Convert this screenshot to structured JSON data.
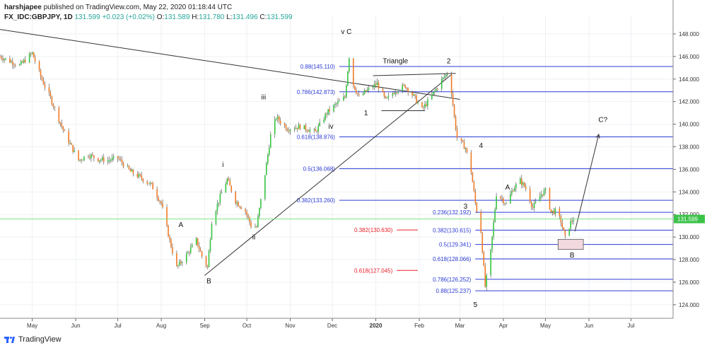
{
  "header": {
    "author": "harshjapee",
    "published": " published on TradingView.com, May 22, 2020 01:18:44 UTC",
    "symbol": "FX_IDC:GBPJPY, 1D",
    "last": "131.599",
    "change": "+0.023 (+0.02%)",
    "o_label": "O:",
    "o": "131.589",
    "h_label": "H:",
    "h": "131.780",
    "l_label": "L:",
    "l": "131.496",
    "c_label": "C:",
    "c": "131.599"
  },
  "footer": {
    "brand": "TradingView"
  },
  "colors": {
    "up": "#34c33f",
    "down": "#f07a25",
    "fib_blue": "#2c3cd6",
    "fib_red": "#e8202a",
    "price_line": "#7ee27e",
    "price_badge": "#3cc34a",
    "trend": "#333333"
  },
  "chart_data": {
    "type": "candlestick",
    "symbol": "GBPJPY",
    "timeframe": "1D",
    "ylim": [
      122.8,
      149.0
    ],
    "y_ticks": [
      124,
      126,
      128,
      130,
      132,
      134,
      136,
      138,
      140,
      142,
      144,
      146,
      148
    ],
    "y_tick_labels": [
      "124.000",
      "126.000",
      "128.000",
      "130.000",
      "132.000",
      "134.000",
      "136.000",
      "138.000",
      "140.000",
      "142.000",
      "144.000",
      "146.000",
      "148.000"
    ],
    "x_range": [
      "2019-04-08",
      "2020-07-31"
    ],
    "x_ticks": [
      {
        "date": "2019-05-01",
        "label": "May"
      },
      {
        "date": "2019-06-01",
        "label": "Jun"
      },
      {
        "date": "2019-07-01",
        "label": "Jul"
      },
      {
        "date": "2019-08-01",
        "label": "Aug"
      },
      {
        "date": "2019-09-01",
        "label": "Sep"
      },
      {
        "date": "2019-10-01",
        "label": "Oct"
      },
      {
        "date": "2019-11-01",
        "label": "Nov"
      },
      {
        "date": "2019-12-01",
        "label": "Dec"
      },
      {
        "date": "2020-01-01",
        "label": "2020"
      },
      {
        "date": "2020-02-01",
        "label": "Feb"
      },
      {
        "date": "2020-03-01",
        "label": "Mar"
      },
      {
        "date": "2020-04-01",
        "label": "Apr"
      },
      {
        "date": "2020-05-01",
        "label": "May"
      },
      {
        "date": "2020-06-01",
        "label": "Jun"
      },
      {
        "date": "2020-07-01",
        "label": "Jul"
      }
    ],
    "last_price": 131.599,
    "last_price_label": "131.599",
    "close_anchors": [
      [
        "2019-04-08",
        146.0
      ],
      [
        "2019-04-22",
        145.2
      ],
      [
        "2019-05-01",
        146.3
      ],
      [
        "2019-05-07",
        144.2
      ],
      [
        "2019-05-14",
        142.3
      ],
      [
        "2019-05-24",
        139.2
      ],
      [
        "2019-06-03",
        136.8
      ],
      [
        "2019-06-10",
        137.3
      ],
      [
        "2019-06-17",
        136.9
      ],
      [
        "2019-06-24",
        136.8
      ],
      [
        "2019-07-01",
        137.0
      ],
      [
        "2019-07-10",
        135.8
      ],
      [
        "2019-07-17",
        135.3
      ],
      [
        "2019-07-25",
        134.6
      ],
      [
        "2019-08-01",
        133.0
      ],
      [
        "2019-08-07",
        129.7
      ],
      [
        "2019-08-12",
        127.3
      ],
      [
        "2019-08-14",
        127.6
      ],
      [
        "2019-08-20",
        128.6
      ],
      [
        "2019-08-26",
        129.7
      ],
      [
        "2019-08-30",
        128.3
      ],
      [
        "2019-09-03",
        127.3
      ],
      [
        "2019-09-06",
        131.4
      ],
      [
        "2019-09-12",
        133.6
      ],
      [
        "2019-09-17",
        135.1
      ],
      [
        "2019-09-23",
        133.2
      ],
      [
        "2019-09-30",
        132.3
      ],
      [
        "2019-10-04",
        131.0
      ],
      [
        "2019-10-08",
        130.9
      ],
      [
        "2019-10-14",
        135.6
      ],
      [
        "2019-10-18",
        139.0
      ],
      [
        "2019-10-22",
        140.6
      ],
      [
        "2019-10-30",
        139.6
      ],
      [
        "2019-11-08",
        139.8
      ],
      [
        "2019-11-19",
        139.3
      ],
      [
        "2019-11-27",
        141.0
      ],
      [
        "2019-12-04",
        141.8
      ],
      [
        "2019-12-10",
        142.4
      ],
      [
        "2019-12-13",
        146.0
      ],
      [
        "2019-12-16",
        143.5
      ],
      [
        "2019-12-20",
        142.4
      ],
      [
        "2019-12-27",
        143.1
      ],
      [
        "2020-01-02",
        143.6
      ],
      [
        "2020-01-08",
        142.1
      ],
      [
        "2020-01-15",
        143.0
      ],
      [
        "2020-01-22",
        143.4
      ],
      [
        "2020-01-29",
        142.3
      ],
      [
        "2020-02-03",
        141.3
      ],
      [
        "2020-02-07",
        142.0
      ],
      [
        "2020-02-12",
        142.9
      ],
      [
        "2020-02-17",
        143.9
      ],
      [
        "2020-02-21",
        144.5
      ],
      [
        "2020-02-24",
        142.9
      ],
      [
        "2020-02-26",
        140.6
      ],
      [
        "2020-02-28",
        138.8
      ],
      [
        "2020-03-05",
        137.9
      ],
      [
        "2020-03-09",
        135.8
      ],
      [
        "2020-03-12",
        133.0
      ],
      [
        "2020-03-16",
        130.5
      ],
      [
        "2020-03-19",
        125.6
      ],
      [
        "2020-03-23",
        128.7
      ],
      [
        "2020-03-27",
        133.8
      ],
      [
        "2020-03-31",
        133.4
      ],
      [
        "2020-04-03",
        132.9
      ],
      [
        "2020-04-08",
        134.3
      ],
      [
        "2020-04-13",
        135.0
      ],
      [
        "2020-04-17",
        134.3
      ],
      [
        "2020-04-22",
        132.6
      ],
      [
        "2020-04-28",
        133.8
      ],
      [
        "2020-05-01",
        134.1
      ],
      [
        "2020-05-05",
        132.2
      ],
      [
        "2020-05-08",
        132.3
      ],
      [
        "2020-05-12",
        131.4
      ],
      [
        "2020-05-15",
        129.9
      ],
      [
        "2020-05-19",
        131.3
      ],
      [
        "2020-05-21",
        131.599
      ]
    ],
    "fib_levels": [
      {
        "ratio": "0.88",
        "price": 145.11,
        "label": "0.88(145.110)",
        "color": "blue",
        "from": "2019-12-06",
        "to": "2020-07-31"
      },
      {
        "ratio": "0.786",
        "price": 142.873,
        "label": "0.786(142.873)",
        "color": "blue",
        "from": "2019-12-06",
        "to": "2020-07-31"
      },
      {
        "ratio": "0.618",
        "price": 138.876,
        "label": "0.618(138.876)",
        "color": "blue",
        "from": "2019-12-06",
        "to": "2020-07-31"
      },
      {
        "ratio": "0.5",
        "price": 136.068,
        "label": "0.5(136.068)",
        "color": "blue",
        "from": "2019-12-06",
        "to": "2020-07-31"
      },
      {
        "ratio": "0.382",
        "price": 133.26,
        "label": "0.382(133.260)",
        "color": "blue",
        "from": "2019-12-06",
        "to": "2020-07-31"
      },
      {
        "ratio": "0.382",
        "price": 130.63,
        "label": "0.382(130.630)",
        "color": "red",
        "from": "2020-01-16",
        "to": "2020-01-31"
      },
      {
        "ratio": "0.618",
        "price": 127.045,
        "label": "0.618(127.045)",
        "color": "red",
        "from": "2020-01-16",
        "to": "2020-01-31"
      },
      {
        "ratio": "0.236",
        "price": 132.192,
        "label": "0.236(132.192)",
        "color": "blue",
        "from": "2020-03-12",
        "to": "2020-07-31"
      },
      {
        "ratio": "0.382",
        "price": 130.615,
        "label": "0.382(130.615)",
        "color": "blue",
        "from": "2020-03-12",
        "to": "2020-07-31"
      },
      {
        "ratio": "0.5",
        "price": 129.341,
        "label": "0.5(129.341)",
        "color": "blue",
        "from": "2020-03-12",
        "to": "2020-07-31"
      },
      {
        "ratio": "0.618",
        "price": 128.066,
        "label": "0.618(128.066)",
        "color": "blue",
        "from": "2020-03-12",
        "to": "2020-07-31"
      },
      {
        "ratio": "0.786",
        "price": 126.252,
        "label": "0.786(126.252)",
        "color": "blue",
        "from": "2020-03-12",
        "to": "2020-07-31"
      },
      {
        "ratio": "0.88",
        "price": 125.237,
        "label": "0.88(125.237)",
        "color": "blue",
        "from": "2020-03-12",
        "to": "2020-07-31"
      }
    ],
    "trendlines": [
      {
        "from": [
          "2019-04-08",
          148.4
        ],
        "to": [
          "2020-03-01",
          142.2
        ]
      },
      {
        "from": [
          "2019-09-01",
          126.6
        ],
        "to": [
          "2020-02-24",
          144.4
        ]
      },
      {
        "from": [
          "2019-12-30",
          144.3
        ],
        "to": [
          "2020-02-27",
          144.5
        ]
      },
      {
        "from": [
          "2020-01-05",
          141.2
        ],
        "to": [
          "2020-02-05",
          141.2
        ]
      },
      {
        "from": [
          "2020-05-22",
          130.5
        ],
        "to": [
          "2020-06-08",
          139.1
        ],
        "arrow": true
      }
    ],
    "target_box": {
      "from": "2020-05-10",
      "to": "2020-05-28",
      "top": 129.8,
      "bottom": 128.9
    },
    "wave_labels": [
      {
        "text": "v C",
        "date": "2019-12-11",
        "price": 148.0
      },
      {
        "text": "Triangle",
        "date": "2020-01-15",
        "price": 145.4
      },
      {
        "text": "2",
        "date": "2020-02-22",
        "price": 145.4
      },
      {
        "text": "iii",
        "date": "2019-10-13",
        "price": 142.2
      },
      {
        "text": "1",
        "date": "2019-12-25",
        "price": 140.8
      },
      {
        "text": "iv",
        "date": "2019-11-30",
        "price": 139.6
      },
      {
        "text": "4",
        "date": "2020-03-16",
        "price": 137.9
      },
      {
        "text": "i",
        "date": "2019-09-14",
        "price": 136.2
      },
      {
        "text": "A",
        "date": "2019-08-15",
        "price": 130.9
      },
      {
        "text": "ii",
        "date": "2019-10-06",
        "price": 129.8
      },
      {
        "text": "B",
        "date": "2019-09-04",
        "price": 125.9
      },
      {
        "text": "A",
        "date": "2020-04-04",
        "price": 134.2
      },
      {
        "text": "3",
        "date": "2020-03-05",
        "price": 132.5
      },
      {
        "text": "B",
        "date": "2020-05-20",
        "price": 128.2
      },
      {
        "text": "5",
        "date": "2020-03-12",
        "price": 123.8
      },
      {
        "text": "C?",
        "date": "2020-06-11",
        "price": 140.2
      }
    ]
  }
}
